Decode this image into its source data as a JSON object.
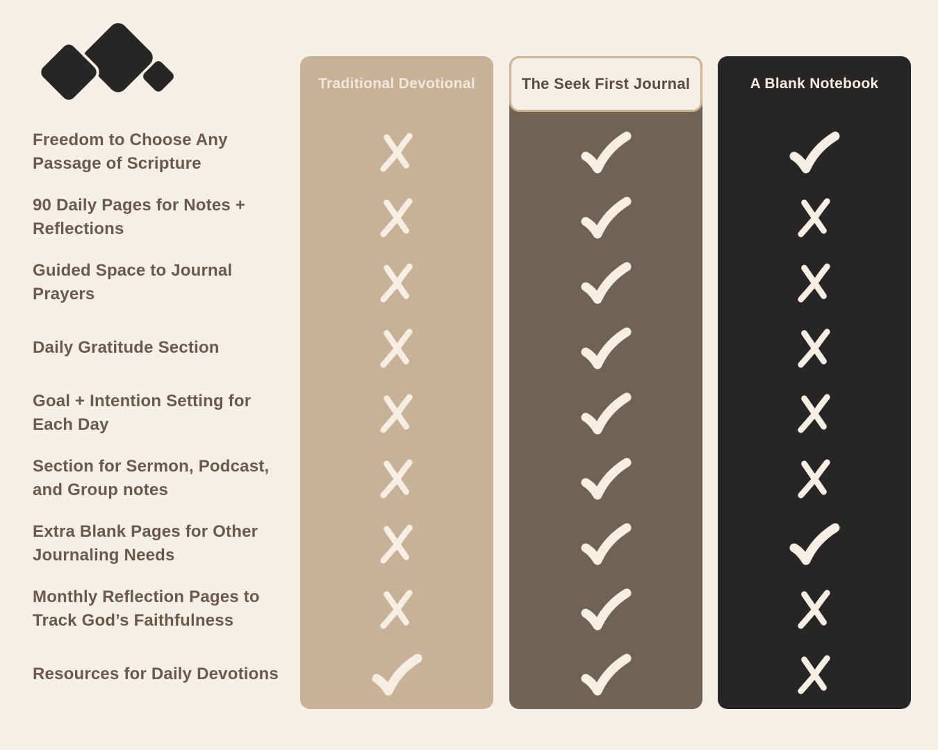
{
  "page": {
    "background": "#f4efe8"
  },
  "logo": {
    "name": "three-diamonds-logo",
    "color": "#282525",
    "outline": "#f4efe8"
  },
  "label_color": "#6b5a49",
  "mark_color": "#f5efe3",
  "features": [
    "Freedom to Choose Any\nPassage of Scripture",
    "90 Daily Pages for Notes +\nReflections",
    "Guided Space to Journal\nPrayers",
    "Daily Gratitude Section",
    "Goal + Intention Setting for\nEach Day",
    "Section for Sermon, Podcast,\nand Group notes",
    "Extra Blank Pages for Other\nJournaling Needs",
    "Monthly Reflection Pages to\nTrack God’s Faithfulness",
    "Resources for Daily Devotions"
  ],
  "columns": [
    {
      "label": "Traditional Devotional",
      "bg": "#c7b199",
      "header_text_color": "#f0e8da",
      "marks": [
        "x",
        "x",
        "x",
        "x",
        "x",
        "x",
        "x",
        "x",
        "check"
      ]
    },
    {
      "label": "The Seek First Journal",
      "bg": "#716253",
      "header_bg": "#f5f0e7",
      "header_border": "#cbb294",
      "header_text_color": "#5b4c3d",
      "marks": [
        "check",
        "check",
        "check",
        "check",
        "check",
        "check",
        "check",
        "check",
        "check"
      ]
    },
    {
      "label": "A Blank Notebook",
      "bg": "#272525",
      "header_text_color": "#f5efe3",
      "marks": [
        "check",
        "x",
        "x",
        "x",
        "x",
        "x",
        "check",
        "x",
        "x"
      ]
    }
  ]
}
